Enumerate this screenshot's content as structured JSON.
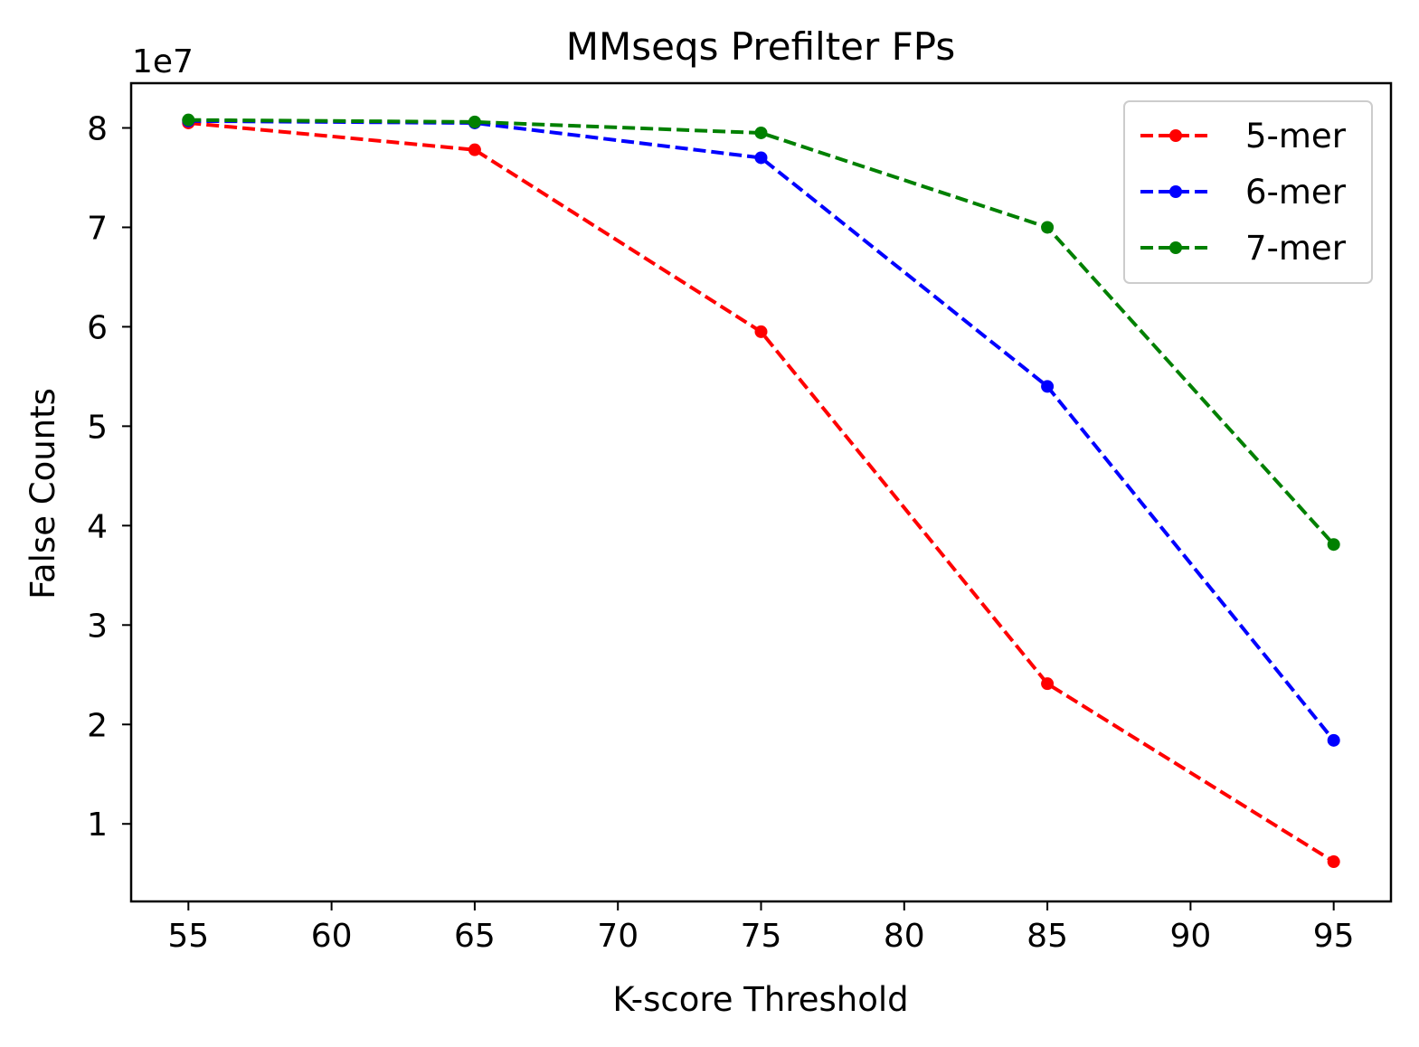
{
  "chart_data": {
    "type": "line",
    "title": "MMseqs Prefilter FPs",
    "xlabel": "K-score Threshold",
    "ylabel": "False Counts",
    "y_offset_label": "1e7",
    "x": [
      55,
      65,
      75,
      85,
      95
    ],
    "xlim": [
      53,
      97
    ],
    "ylim": [
      2200000,
      84500000
    ],
    "xticks": [
      55,
      60,
      65,
      70,
      75,
      80,
      85,
      90,
      95
    ],
    "xtick_labels": [
      "55",
      "60",
      "65",
      "70",
      "75",
      "80",
      "85",
      "90",
      "95"
    ],
    "yticks": [
      10000000,
      20000000,
      30000000,
      40000000,
      50000000,
      60000000,
      70000000,
      80000000
    ],
    "ytick_labels": [
      "1",
      "2",
      "3",
      "4",
      "5",
      "6",
      "7",
      "8"
    ],
    "grid": false,
    "legend_position": "top-right",
    "series": [
      {
        "name": "5-mer",
        "color": "#ff0000",
        "values": [
          80500000,
          77800000,
          59500000,
          24100000,
          6200000
        ]
      },
      {
        "name": "6-mer",
        "color": "#0000ff",
        "values": [
          80700000,
          80500000,
          77000000,
          54000000,
          18400000
        ]
      },
      {
        "name": "7-mer",
        "color": "#008000",
        "values": [
          80800000,
          80600000,
          79500000,
          70000000,
          38100000
        ]
      }
    ]
  }
}
